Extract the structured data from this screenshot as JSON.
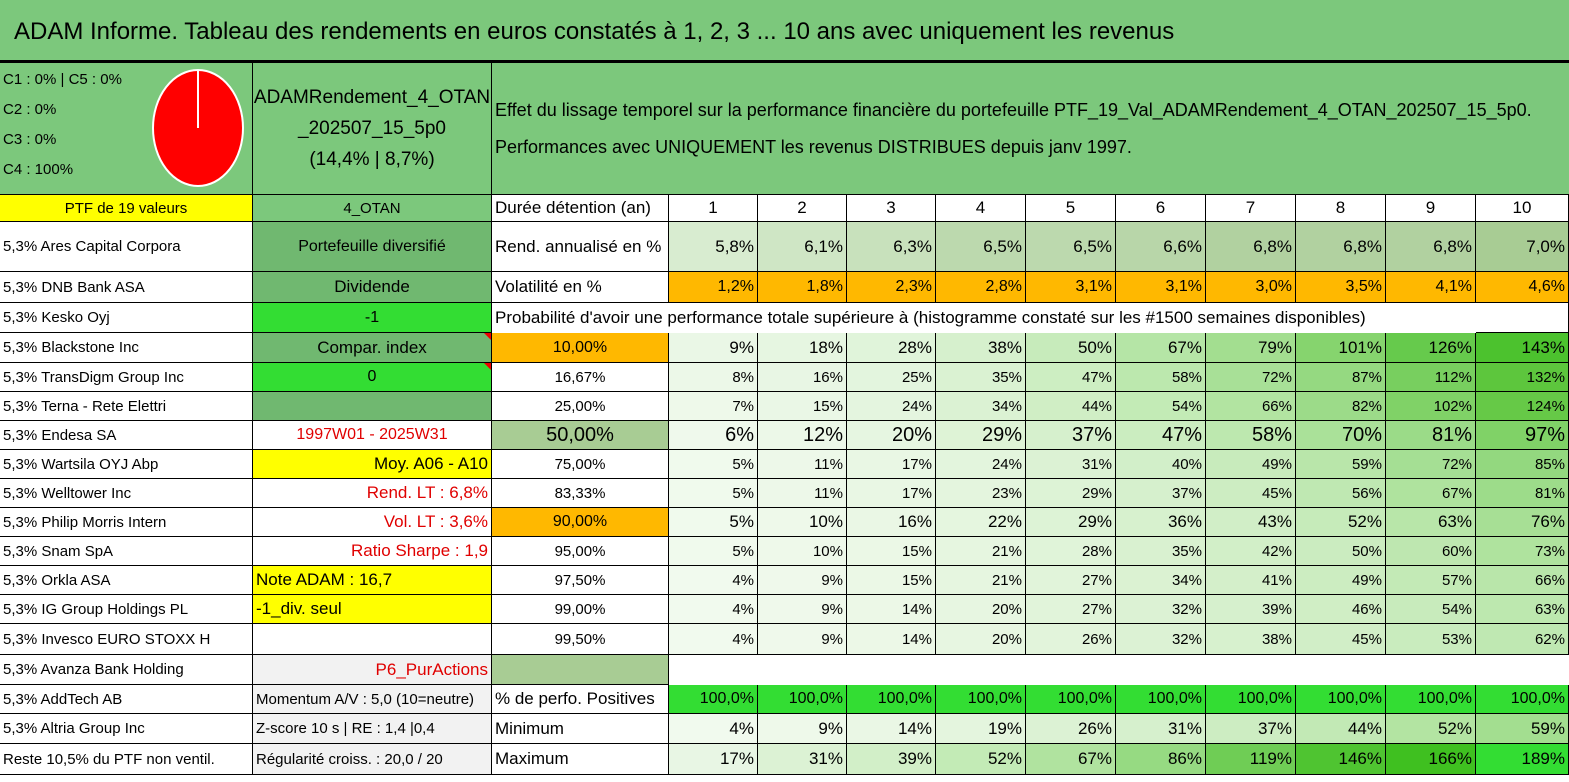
{
  "title": "ADAM Informe. Tableau des rendements en euros constatés à 1, 2, 3 ... 10 ans avec uniquement les revenus",
  "colors": {
    "header_green": "#7cc87c",
    "yellow": "#ffff00",
    "bright_green": "#33dd33",
    "mid_green": "#70b870",
    "orange": "#ffb800",
    "pie_red": "#ff0000",
    "red_text": "#e00000"
  },
  "classes": {
    "c1": "C1 : 0% | C5 : 0%",
    "c2": "C2 : 0%",
    "c3": "C3 : 0%",
    "c4": "C4 : 100%"
  },
  "pie_chart": {
    "C4": 100
  },
  "portfolio": {
    "name": "ADAMRendement_4_OTAN _202507_15_5p0",
    "name_line1": "ADAMRendement_4_OTAN",
    "name_line2": "_202507_15_5p0",
    "name_line3": "(14,4% | 8,7%)",
    "description_line1": "Effet du lissage temporel sur la performance financière du portefeuille PTF_19_Val_ADAMRendement_4_OTAN_202507_15_5p0.",
    "description_line2": "Performances avec UNIQUEMENT les revenus DISTRIBUES depuis janv 1997.",
    "ptf_label": "PTF de 19 valeurs",
    "code": "4_OTAN"
  },
  "holdings": [
    "5,3% Ares Capital Corpora",
    "5,3% DNB Bank ASA",
    "5,3% Kesko Oyj",
    "5,3% Blackstone Inc",
    "5,3% TransDigm Group Inc",
    "5,3% Terna - Rete Elettri",
    "5,3% Endesa SA",
    "5,3% Wartsila OYJ Abp",
    "5,3% Welltower Inc",
    "5,3% Philip Morris Intern",
    "5,3% Snam SpA",
    "5,3% Orkla ASA",
    "5,3% IG Group Holdings PL",
    "5,3% Invesco EURO STOXX H",
    "5,3% Avanza Bank Holding",
    "5,3% AddTech AB",
    "5,3% Altria Group Inc",
    "Reste 10,5% du PTF non ventil."
  ],
  "info": [
    "Portefeuille diversifié",
    "Dividende",
    "-1",
    "Compar. index",
    "0",
    "",
    "1997W01 - 2025W31",
    "Moy. A06 - A10",
    "Rend. LT : 6,8%",
    "Vol. LT : 3,6%",
    "Ratio Sharpe : 1,9",
    "Note ADAM : 16,7",
    "-1_div. seul",
    "",
    "P6_PurActions",
    "Momentum A/V : 5,0 (10=neutre)",
    "Z-score 10 s | RE : 1,4 |0,4",
    "Régularité croiss. : 20,0 / 20"
  ],
  "duration_label": "Durée détention (an)",
  "years": [
    "1",
    "2",
    "3",
    "4",
    "5",
    "6",
    "7",
    "8",
    "9",
    "10"
  ],
  "rend_label": "Rend. annualisé en %",
  "rend": [
    "5,8%",
    "6,1%",
    "6,3%",
    "6,5%",
    "6,5%",
    "6,6%",
    "6,8%",
    "6,8%",
    "6,8%",
    "7,0%"
  ],
  "vol_label": "Volatilité en %",
  "vol": [
    "1,2%",
    "1,8%",
    "2,3%",
    "2,8%",
    "3,1%",
    "3,1%",
    "3,0%",
    "3,5%",
    "4,1%",
    "4,6%"
  ],
  "prob_title": "Probabilité d'avoir une performance totale supérieure à (histogramme constaté sur les #1500 semaines disponibles)",
  "prob_rows": [
    {
      "p": "10,00%",
      "v": [
        "9%",
        "18%",
        "28%",
        "38%",
        "50%",
        "67%",
        "79%",
        "101%",
        "126%",
        "143%"
      ]
    },
    {
      "p": "16,67%",
      "v": [
        "8%",
        "16%",
        "25%",
        "35%",
        "47%",
        "58%",
        "72%",
        "87%",
        "112%",
        "132%"
      ]
    },
    {
      "p": "25,00%",
      "v": [
        "7%",
        "15%",
        "24%",
        "34%",
        "44%",
        "54%",
        "66%",
        "82%",
        "102%",
        "124%"
      ]
    },
    {
      "p": "50,00%",
      "v": [
        "6%",
        "12%",
        "20%",
        "29%",
        "37%",
        "47%",
        "58%",
        "70%",
        "81%",
        "97%"
      ]
    },
    {
      "p": "75,00%",
      "v": [
        "5%",
        "11%",
        "17%",
        "24%",
        "31%",
        "40%",
        "49%",
        "59%",
        "72%",
        "85%"
      ]
    },
    {
      "p": "83,33%",
      "v": [
        "5%",
        "11%",
        "17%",
        "23%",
        "29%",
        "37%",
        "45%",
        "56%",
        "67%",
        "81%"
      ]
    },
    {
      "p": "90,00%",
      "v": [
        "5%",
        "10%",
        "16%",
        "22%",
        "29%",
        "36%",
        "43%",
        "52%",
        "63%",
        "76%"
      ]
    },
    {
      "p": "95,00%",
      "v": [
        "5%",
        "10%",
        "15%",
        "21%",
        "28%",
        "35%",
        "42%",
        "50%",
        "60%",
        "73%"
      ]
    },
    {
      "p": "97,50%",
      "v": [
        "4%",
        "9%",
        "15%",
        "21%",
        "27%",
        "34%",
        "41%",
        "49%",
        "57%",
        "66%"
      ]
    },
    {
      "p": "99,00%",
      "v": [
        "4%",
        "9%",
        "14%",
        "20%",
        "27%",
        "32%",
        "39%",
        "46%",
        "54%",
        "63%"
      ]
    },
    {
      "p": "99,50%",
      "v": [
        "4%",
        "9%",
        "14%",
        "20%",
        "26%",
        "32%",
        "38%",
        "45%",
        "53%",
        "62%"
      ]
    }
  ],
  "pos_label": "% de perfo. Positives",
  "pos": [
    "100,0%",
    "100,0%",
    "100,0%",
    "100,0%",
    "100,0%",
    "100,0%",
    "100,0%",
    "100,0%",
    "100,0%",
    "100,0%"
  ],
  "min_label": "Minimum",
  "min": [
    "4%",
    "9%",
    "14%",
    "19%",
    "26%",
    "31%",
    "37%",
    "44%",
    "52%",
    "59%"
  ],
  "max_label": "Maximum",
  "max": [
    "17%",
    "31%",
    "39%",
    "52%",
    "67%",
    "86%",
    "119%",
    "146%",
    "166%",
    "189%"
  ]
}
